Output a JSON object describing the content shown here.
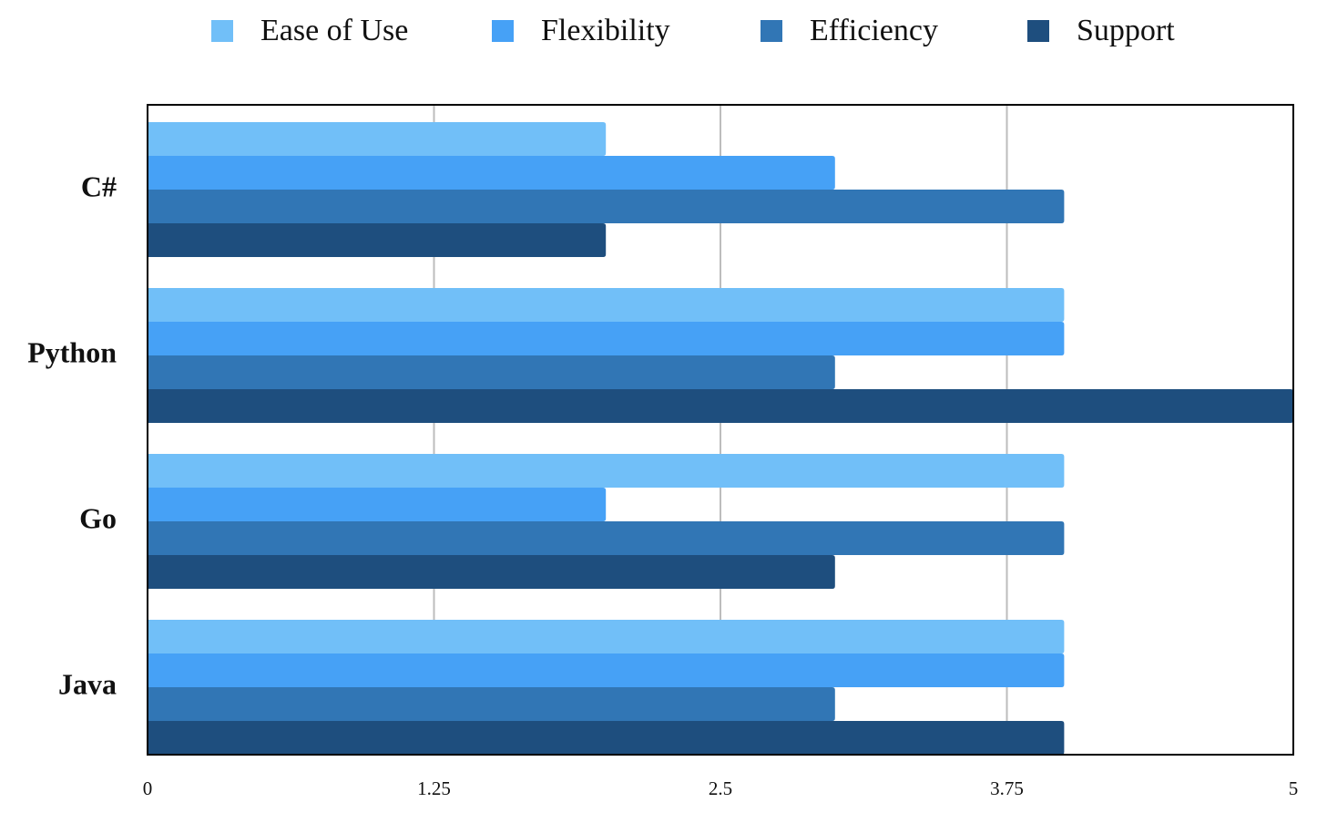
{
  "chart_data": {
    "type": "bar",
    "orientation": "horizontal",
    "categories": [
      "C#",
      "Python",
      "Go",
      "Java"
    ],
    "series": [
      {
        "name": "Ease of Use",
        "color": "#71BFF8",
        "values": [
          2,
          4,
          4,
          4
        ]
      },
      {
        "name": "Flexibility",
        "color": "#46A1F6",
        "values": [
          3,
          4,
          2,
          4
        ]
      },
      {
        "name": "Efficiency",
        "color": "#3176B5",
        "values": [
          4,
          3,
          4,
          3
        ]
      },
      {
        "name": "Support",
        "color": "#1E4E7E",
        "values": [
          2,
          5,
          3,
          4
        ]
      }
    ],
    "xlim": [
      0,
      5
    ],
    "xticks": [
      0,
      1.25,
      2.5,
      3.75,
      5
    ],
    "xtick_labels": [
      "0",
      "1.25",
      "2.5",
      "3.75",
      "5"
    ],
    "grid": "vertical",
    "legend_position": "top"
  }
}
